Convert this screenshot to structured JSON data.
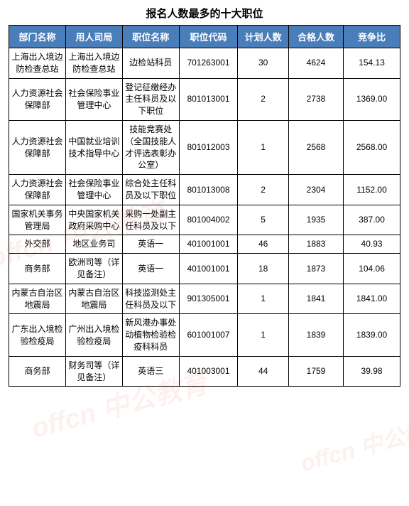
{
  "title": "报名人数最多的十大职位",
  "table": {
    "columns": [
      "部门名称",
      "用人司局",
      "职位名称",
      "职位代码",
      "计划人数",
      "合格人数",
      "竞争比"
    ],
    "header_bg": "#4a7ebb",
    "header_color": "#ffffff",
    "border_color": "#000000",
    "rows": [
      [
        "上海出入境边防检查总站",
        "上海出入境边防检查总站",
        "边检站科员",
        "701263001",
        "30",
        "4624",
        "154.13"
      ],
      [
        "人力资源社会保障部",
        "社会保险事业管理中心",
        "登记征缴经办主任科员及以下职位",
        "801013001",
        "2",
        "2738",
        "1369.00"
      ],
      [
        "人力资源社会保障部",
        "中国就业培训技术指导中心",
        "技能竞赛处（全国技能人才评选表彰办公室）",
        "801012003",
        "1",
        "2568",
        "2568.00"
      ],
      [
        "人力资源社会保障部",
        "社会保险事业管理中心",
        "综合处主任科员及以下职位",
        "801013008",
        "2",
        "2304",
        "1152.00"
      ],
      [
        "国家机关事务管理局",
        "中央国家机关政府采购中心",
        "采购一处副主任科员及以下",
        "801004002",
        "5",
        "1935",
        "387.00"
      ],
      [
        "外交部",
        "地区业务司",
        "英语一",
        "401001001",
        "46",
        "1883",
        "40.93"
      ],
      [
        "商务部",
        "欧洲司等（详见备注）",
        "英语一",
        "401001001",
        "18",
        "1873",
        "104.06"
      ],
      [
        "内蒙古自治区地震局",
        "内蒙古自治区地震局",
        "科技监测处主任科员及以下",
        "901305001",
        "1",
        "1841",
        "1841.00"
      ],
      [
        "广东出入境检验检疫局",
        "广州出入境检验检疫局",
        "新风港办事处动植物检验检疫科科员",
        "601001007",
        "1",
        "1839",
        "1839.00"
      ],
      [
        "商务部",
        "财务司等（详见备注）",
        "英语三",
        "401003001",
        "44",
        "1759",
        "39.98"
      ]
    ]
  },
  "watermark_text": "offcn 中公教育"
}
